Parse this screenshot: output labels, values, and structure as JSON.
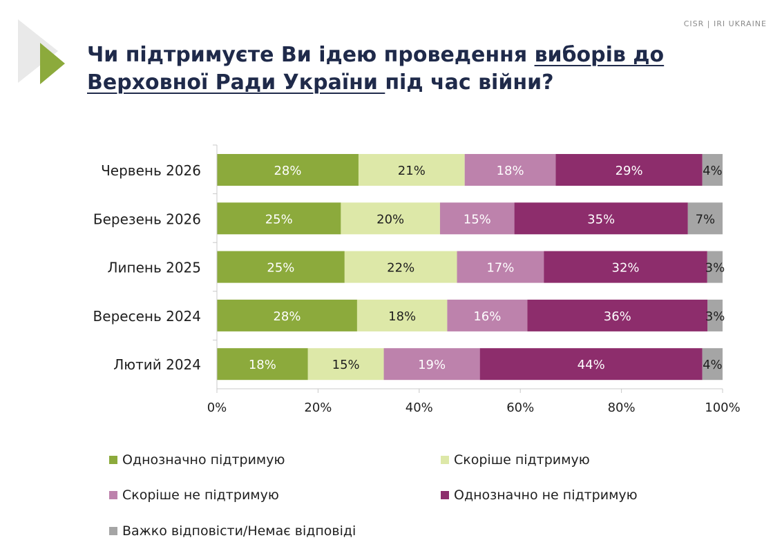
{
  "header": {
    "brand": "CISR | IRI UKRAINE",
    "title_plain_1": "Чи підтримуєте Ви ідею проведення ",
    "title_underlined": "виборів до Верховної Ради України ",
    "title_plain_2": "під час війни?"
  },
  "chart_data": {
    "type": "bar",
    "orientation": "horizontal",
    "stacked": true,
    "categories": [
      "Червень 2026",
      "Березень 2026",
      "Липень 2025",
      "Вересень 2024",
      "Лютий 2024"
    ],
    "series": [
      {
        "name": "Однозначно підтримую",
        "color": "#8caa3c",
        "values": [
          28,
          25,
          25,
          28,
          18
        ],
        "labels": [
          "28%",
          "25%",
          "25%",
          "28%",
          "18%"
        ]
      },
      {
        "name": "Скоріше підтримую",
        "color": "#dde8a8",
        "values": [
          21,
          20,
          22,
          18,
          15
        ],
        "labels": [
          "21%",
          "20%",
          "22%",
          "18%",
          "15%"
        ]
      },
      {
        "name": "Скоріше не підтримую",
        "color": "#bd82ac",
        "values": [
          18,
          15,
          17,
          16,
          19
        ],
        "labels": [
          "18%",
          "15%",
          "17%",
          "16%",
          "19%"
        ]
      },
      {
        "name": "Однозначно не підтримую",
        "color": "#8d2d6c",
        "values": [
          29,
          35,
          32,
          36,
          44
        ],
        "labels": [
          "29%",
          "35%",
          "32%",
          "36%",
          "44%"
        ]
      },
      {
        "name": "Важко відповісти/Немає відповіді",
        "color": "#a5a5a5",
        "values": [
          4,
          7,
          3,
          3,
          4
        ],
        "labels": [
          "4%",
          "7%",
          "3%",
          "3%",
          "4%"
        ]
      }
    ],
    "label_colors": [
      "#ffffff",
      "#1e1e1e",
      "#ffffff",
      "#ffffff",
      "#1e1e1e"
    ],
    "xlim": [
      0,
      100
    ],
    "x_ticks": [
      "0%",
      "20%",
      "40%",
      "60%",
      "80%",
      "100%"
    ],
    "grid": false,
    "legend_position": "bottom"
  }
}
